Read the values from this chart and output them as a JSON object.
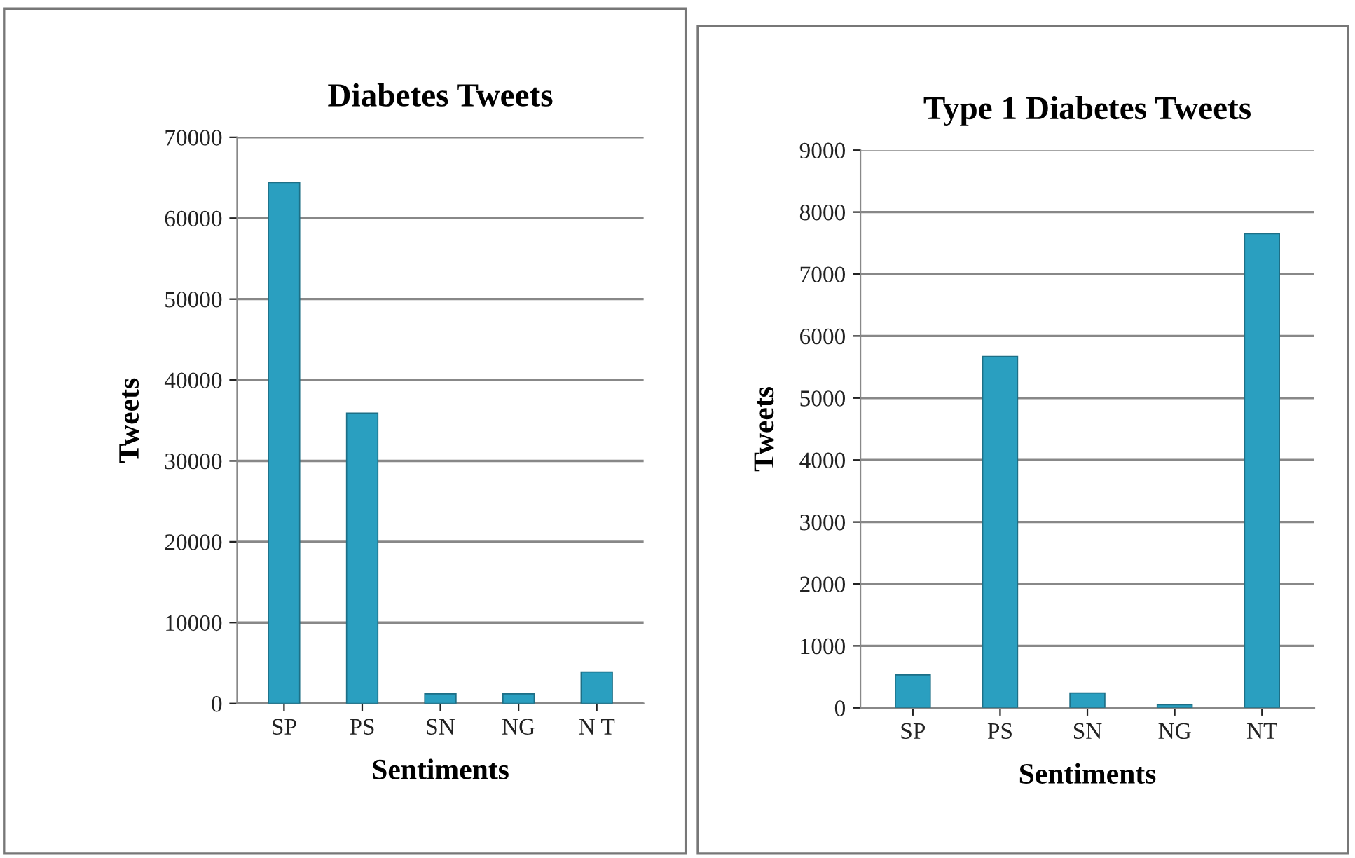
{
  "chart_data": [
    {
      "type": "bar",
      "title": "Diabetes Tweets",
      "xlabel": "Sentiments",
      "ylabel": "Tweets",
      "categories": [
        "SP",
        "PS",
        "SN",
        "NG",
        "N T"
      ],
      "values": [
        64400,
        35900,
        1200,
        1200,
        3900
      ],
      "color": "#2a9fc0",
      "ylim": [
        0,
        70000
      ],
      "yticks": [
        0,
        10000,
        20000,
        30000,
        40000,
        50000,
        60000,
        70000
      ],
      "grid": "y",
      "legend": false
    },
    {
      "type": "bar",
      "title": "Type 1 Diabetes Tweets",
      "xlabel": "Sentiments",
      "ylabel": "Tweets",
      "categories": [
        "SP",
        "PS",
        "SN",
        "NG",
        "NT"
      ],
      "values": [
        530,
        5670,
        240,
        50,
        7650
      ],
      "color": "#2a9fc0",
      "ylim": [
        0,
        9000
      ],
      "yticks": [
        0,
        1000,
        2000,
        3000,
        4000,
        5000,
        6000,
        7000,
        8000,
        9000
      ],
      "grid": "y",
      "legend": false
    }
  ]
}
